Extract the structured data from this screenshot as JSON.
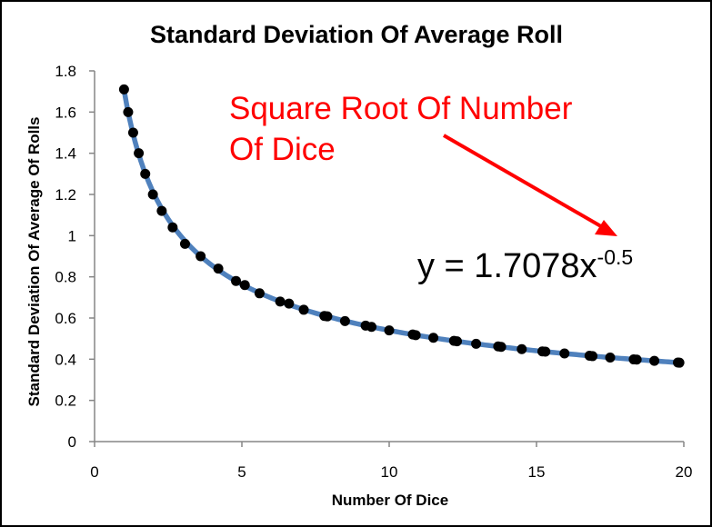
{
  "chart_data": {
    "type": "scatter",
    "title": "Standard Deviation Of Average Roll",
    "xlabel": "Number Of Dice",
    "ylabel": "Standard Deviation Of Average Of Rolls",
    "xlim": [
      0,
      20
    ],
    "ylim": [
      0,
      1.8
    ],
    "x_ticks": [
      "0",
      "5",
      "10",
      "15",
      "20"
    ],
    "y_ticks": [
      "0",
      "0.2",
      "0.4",
      "0.6",
      "0.8",
      "1",
      "1.2",
      "1.4",
      "1.6",
      "1.8"
    ],
    "grid": false,
    "series": [
      {
        "marker_color": "#000000",
        "trend_color": "#4f81bd",
        "x": [
          1.0,
          1.14,
          1.31,
          1.5,
          1.72,
          1.98,
          2.28,
          2.65,
          3.07,
          3.6,
          4.2,
          4.8,
          5.1,
          5.6,
          6.3,
          6.6,
          7.1,
          7.8,
          7.9,
          8.5,
          9.2,
          9.4,
          10.0,
          10.8,
          10.9,
          11.5,
          12.2,
          12.3,
          12.95,
          13.7,
          13.8,
          14.5,
          15.2,
          15.3,
          15.95,
          16.8,
          16.9,
          17.5,
          18.3,
          18.4,
          19.0,
          19.8,
          19.85
        ],
        "y": [
          1.71,
          1.6,
          1.5,
          1.4,
          1.3,
          1.2,
          1.12,
          1.04,
          0.96,
          0.9,
          0.84,
          0.78,
          0.76,
          0.72,
          0.68,
          0.67,
          0.64,
          0.61,
          0.608,
          0.585,
          0.563,
          0.557,
          0.54,
          0.52,
          0.517,
          0.504,
          0.489,
          0.487,
          0.475,
          0.462,
          0.46,
          0.449,
          0.438,
          0.437,
          0.428,
          0.417,
          0.415,
          0.408,
          0.399,
          0.398,
          0.392,
          0.384,
          0.383
        ]
      }
    ],
    "annotations": [
      {
        "text_line1": "Square Root Of Number",
        "text_line2": "Of Dice",
        "color": "#ff0000"
      }
    ],
    "trendline_equation": {
      "prefix": "y = 1.7078x",
      "exponent": "-0.5",
      "coefficient": 1.7078,
      "power": -0.5
    }
  }
}
